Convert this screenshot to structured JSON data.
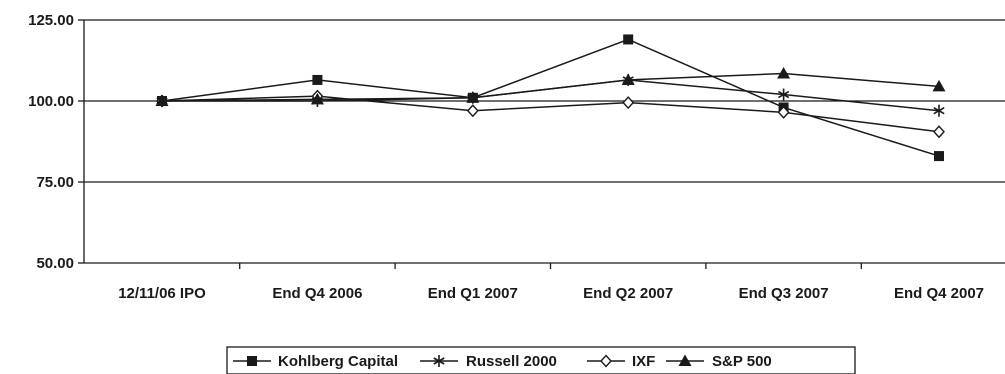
{
  "chart_data": {
    "type": "line",
    "categories": [
      "12/11/06 IPO",
      "End Q4 2006",
      "End Q1 2007",
      "End Q2 2007",
      "End Q3 2007",
      "End Q4 2007"
    ],
    "ylim": [
      50,
      125
    ],
    "yticks": [
      "50.00",
      "75.00",
      "100.00",
      "125.00"
    ],
    "ytick_values": [
      50,
      75,
      100,
      125
    ],
    "grid": "horizontal",
    "legend_position": "bottom",
    "series": [
      {
        "name": "Kohlberg Capital",
        "marker": "square",
        "color": "#1a1a1a",
        "values": [
          100,
          106.5,
          101,
          119,
          98,
          83
        ]
      },
      {
        "name": "Russell 2000",
        "marker": "asterisk",
        "color": "#1a1a1a",
        "values": [
          100,
          100,
          101,
          106.5,
          102,
          97
        ]
      },
      {
        "name": "IXF",
        "marker": "diamond-open",
        "color": "#1a1a1a",
        "values": [
          100,
          101.5,
          97,
          99.5,
          96.5,
          90.5
        ]
      },
      {
        "name": "S&P 500",
        "marker": "triangle",
        "color": "#1a1a1a",
        "values": [
          100,
          100.5,
          101,
          106.5,
          108.5,
          104.5
        ]
      }
    ]
  }
}
